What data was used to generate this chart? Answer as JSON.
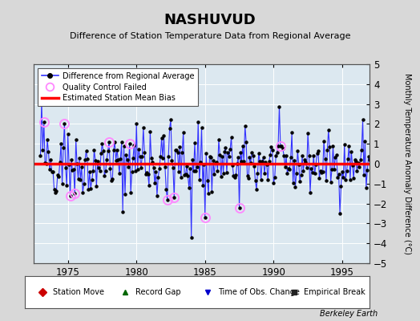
{
  "title": "NASHUVUD",
  "subtitle": "Difference of Station Temperature Data from Regional Average",
  "ylabel": "Monthly Temperature Anomaly Difference (°C)",
  "xlabel_ticks": [
    1975,
    1980,
    1985,
    1990,
    1995
  ],
  "ylim": [
    -5,
    5
  ],
  "xlim": [
    1972.5,
    1997.0
  ],
  "bias_line_y": 0.0,
  "background_color": "#d8d8d8",
  "plot_background": "#dce8f0",
  "line_color": "#3333ff",
  "marker_color": "#000000",
  "bias_color": "#ff0000",
  "qc_color": "#ff88ff",
  "grid_color": "#ffffff",
  "watermark": "Berkeley Earth",
  "yticks": [
    -5,
    -4,
    -3,
    -2,
    -1,
    0,
    1,
    2,
    3,
    4,
    5
  ]
}
